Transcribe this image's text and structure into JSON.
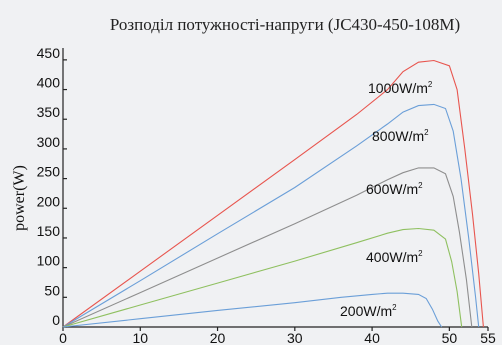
{
  "chart_data": {
    "type": "line",
    "title": "Розподіл потужності-напруги (JC430-450-108M)",
    "xlabel": "",
    "ylabel": "power(W)",
    "xlim": [
      0,
      55
    ],
    "ylim": [
      0,
      470
    ],
    "x_ticks": [
      "0",
      "10",
      "20",
      "30",
      "40",
      "50",
      "55"
    ],
    "y_ticks": [
      "0",
      "50",
      "100",
      "150",
      "200",
      "250",
      "300",
      "350",
      "400",
      "450"
    ],
    "grid": false,
    "series": [
      {
        "name": "1000W/m2",
        "label_text": "1000W/m",
        "label_sup": "2",
        "color": "#e8554e",
        "points": [
          [
            0,
            0
          ],
          [
            10,
            94
          ],
          [
            20,
            188
          ],
          [
            30,
            282
          ],
          [
            38,
            358
          ],
          [
            42,
            400
          ],
          [
            44,
            430
          ],
          [
            46,
            446
          ],
          [
            48,
            449
          ],
          [
            50,
            440
          ],
          [
            51,
            400
          ],
          [
            52,
            300
          ],
          [
            53,
            190
          ],
          [
            53.8,
            90
          ],
          [
            54.4,
            0
          ]
        ]
      },
      {
        "name": "800W/m2",
        "label_text": "800W/m",
        "label_sup": "2",
        "color": "#6b9fd8",
        "points": [
          [
            0,
            0
          ],
          [
            10,
            78
          ],
          [
            20,
            157
          ],
          [
            30,
            235
          ],
          [
            38,
            305
          ],
          [
            42,
            342
          ],
          [
            44,
            362
          ],
          [
            46,
            373
          ],
          [
            48,
            375
          ],
          [
            49.5,
            368
          ],
          [
            50.5,
            330
          ],
          [
            51.5,
            250
          ],
          [
            52.5,
            150
          ],
          [
            53.4,
            50
          ],
          [
            53.8,
            0
          ]
        ]
      },
      {
        "name": "600W/m2",
        "label_text": "600W/m",
        "label_sup": "2",
        "color": "#8e8e8e",
        "points": [
          [
            0,
            0
          ],
          [
            10,
            58
          ],
          [
            20,
            116
          ],
          [
            30,
            174
          ],
          [
            38,
            222
          ],
          [
            42,
            248
          ],
          [
            44,
            260
          ],
          [
            46,
            268
          ],
          [
            48,
            268
          ],
          [
            49.5,
            258
          ],
          [
            50.5,
            220
          ],
          [
            51.3,
            160
          ],
          [
            52.2,
            80
          ],
          [
            52.9,
            0
          ]
        ]
      },
      {
        "name": "400W/m2",
        "label_text": "400W/m",
        "label_sup": "2",
        "color": "#8fc060",
        "points": [
          [
            0,
            0
          ],
          [
            10,
            37
          ],
          [
            20,
            74
          ],
          [
            30,
            111
          ],
          [
            38,
            142
          ],
          [
            42,
            158
          ],
          [
            44,
            164
          ],
          [
            46,
            166
          ],
          [
            48,
            163
          ],
          [
            49.5,
            148
          ],
          [
            50.3,
            110
          ],
          [
            51,
            60
          ],
          [
            51.6,
            0
          ]
        ]
      },
      {
        "name": "200W/m2",
        "label_text": "200W/m",
        "label_sup": "2",
        "color": "#6b9fd8",
        "points": [
          [
            0,
            0
          ],
          [
            10,
            14
          ],
          [
            20,
            28
          ],
          [
            30,
            41
          ],
          [
            36,
            50
          ],
          [
            40,
            55
          ],
          [
            42,
            57
          ],
          [
            44,
            57
          ],
          [
            46,
            55
          ],
          [
            47,
            48
          ],
          [
            47.8,
            30
          ],
          [
            48.5,
            10
          ],
          [
            49,
            0
          ]
        ]
      }
    ]
  }
}
